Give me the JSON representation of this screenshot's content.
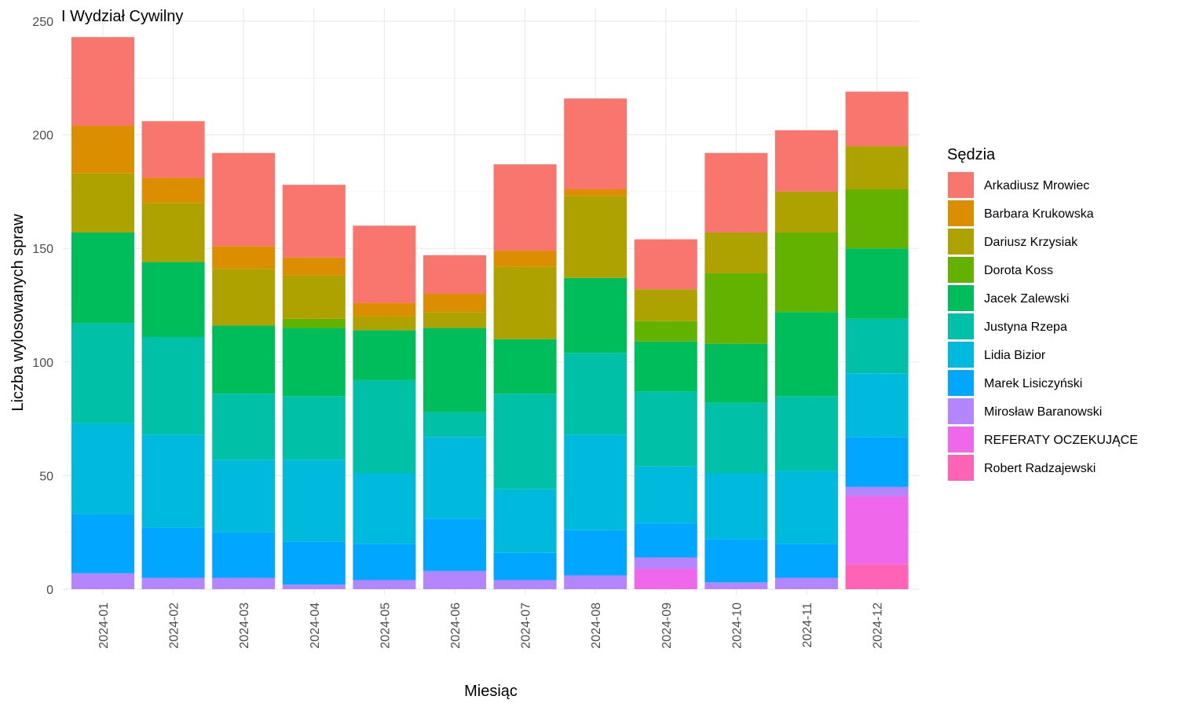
{
  "chart_data": {
    "type": "bar",
    "stacked": true,
    "title": "I Wydział Cywilny",
    "xlabel": "Miesiąc",
    "ylabel": "Liczba wylosowanych spraw",
    "ylim": [
      0,
      250
    ],
    "yticks": [
      0,
      50,
      100,
      150,
      200,
      250
    ],
    "grid": true,
    "legend_title": "Sędzia",
    "legend_position": "right",
    "categories": [
      "2024-01",
      "2024-02",
      "2024-03",
      "2024-04",
      "2024-05",
      "2024-06",
      "2024-07",
      "2024-08",
      "2024-09",
      "2024-10",
      "2024-11",
      "2024-12"
    ],
    "series": [
      {
        "name": "Arkadiusz Mrowiec",
        "color": "#F8766D",
        "values": [
          39,
          25,
          41,
          32,
          34,
          17,
          38,
          40,
          22,
          35,
          27,
          24
        ]
      },
      {
        "name": "Barbara Krukowska",
        "color": "#DB8E00",
        "values": [
          21,
          11,
          10,
          8,
          6,
          8,
          7,
          3,
          0,
          0,
          0,
          0
        ]
      },
      {
        "name": "Dariusz Krzysiak",
        "color": "#AEA200",
        "values": [
          26,
          26,
          25,
          19,
          6,
          7,
          32,
          36,
          14,
          18,
          18,
          19
        ]
      },
      {
        "name": "Dorota Koss",
        "color": "#64B200",
        "values": [
          0,
          0,
          0,
          4,
          0,
          0,
          0,
          0,
          9,
          31,
          35,
          26
        ]
      },
      {
        "name": "Jacek Zalewski",
        "color": "#00BD5C",
        "values": [
          40,
          33,
          30,
          30,
          22,
          37,
          24,
          33,
          22,
          26,
          37,
          31
        ]
      },
      {
        "name": "Justyna Rzepa",
        "color": "#00C1A7",
        "values": [
          44,
          43,
          29,
          28,
          41,
          11,
          42,
          36,
          33,
          31,
          33,
          24
        ]
      },
      {
        "name": "Lidia Bizior",
        "color": "#00BADE",
        "values": [
          40,
          41,
          32,
          36,
          31,
          36,
          28,
          42,
          25,
          29,
          32,
          28
        ]
      },
      {
        "name": "Marek Lisiczyński",
        "color": "#00A6FF",
        "values": [
          26,
          22,
          20,
          19,
          16,
          23,
          12,
          20,
          15,
          19,
          15,
          22
        ]
      },
      {
        "name": "Mirosław Baranowski",
        "color": "#B385FF",
        "values": [
          7,
          5,
          5,
          2,
          4,
          8,
          4,
          6,
          5,
          3,
          5,
          4
        ]
      },
      {
        "name": "REFERATY OCZEKUJĄCE",
        "color": "#EF67EB",
        "values": [
          0,
          0,
          0,
          0,
          0,
          0,
          0,
          0,
          9,
          0,
          0,
          30
        ]
      },
      {
        "name": "Robert Radzajewski",
        "color": "#FF63B6",
        "values": [
          0,
          0,
          0,
          0,
          0,
          0,
          0,
          0,
          0,
          0,
          0,
          11
        ]
      }
    ]
  }
}
